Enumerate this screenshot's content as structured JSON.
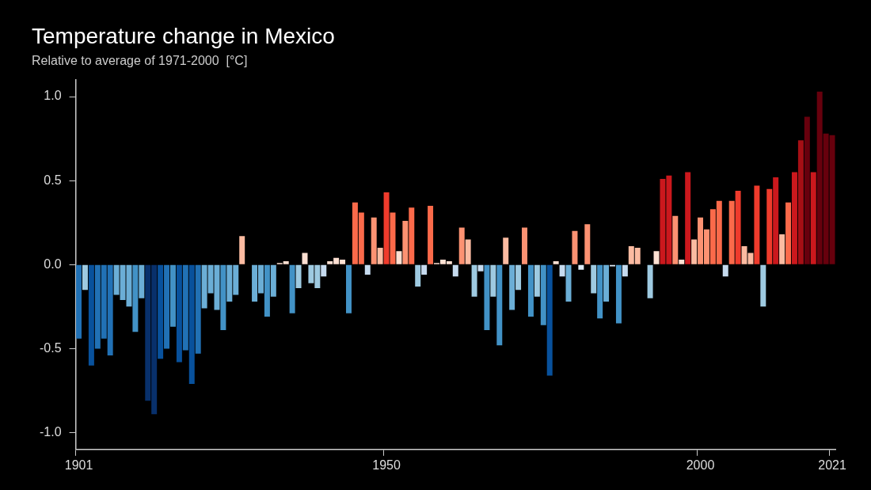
{
  "chart_data": {
    "type": "bar",
    "title": "Temperature change in Mexico",
    "subtitle": "Relative to average of 1971-2000  [°C]",
    "categories": [
      1901,
      null,
      null,
      null,
      null,
      null,
      null,
      null,
      null,
      null,
      null,
      null,
      null,
      null,
      null,
      null,
      null,
      null,
      null,
      null,
      null,
      null,
      null,
      null,
      null,
      null,
      null,
      null,
      null,
      null,
      null,
      null,
      null,
      null,
      null,
      null,
      null,
      null,
      null,
      null,
      null,
      null,
      null,
      null,
      null,
      null,
      null,
      null,
      null,
      1950,
      null,
      null,
      null,
      null,
      null,
      null,
      null,
      null,
      null,
      null,
      null,
      null,
      null,
      null,
      null,
      null,
      null,
      null,
      null,
      null,
      null,
      null,
      null,
      null,
      null,
      null,
      null,
      null,
      null,
      null,
      null,
      null,
      null,
      null,
      null,
      null,
      null,
      null,
      null,
      null,
      null,
      null,
      null,
      null,
      null,
      null,
      null,
      null,
      null,
      2000,
      null,
      null,
      null,
      null,
      null,
      null,
      null,
      null,
      null,
      null,
      null,
      null,
      null,
      null,
      null,
      null,
      null,
      null,
      null,
      null,
      2021
    ],
    "values": [
      -0.44,
      -0.15,
      -0.6,
      -0.5,
      -0.44,
      -0.54,
      -0.18,
      -0.21,
      -0.25,
      -0.4,
      -0.2,
      -0.81,
      -0.89,
      -0.56,
      -0.5,
      -0.37,
      -0.58,
      -0.51,
      -0.71,
      -0.53,
      -0.26,
      -0.17,
      -0.27,
      -0.39,
      -0.22,
      -0.18,
      0.17,
      0.0,
      -0.22,
      -0.17,
      -0.31,
      -0.19,
      0.01,
      0.02,
      -0.29,
      -0.14,
      0.07,
      -0.11,
      -0.14,
      -0.07,
      0.02,
      0.04,
      0.03,
      -0.29,
      0.37,
      0.31,
      -0.06,
      0.28,
      0.1,
      0.43,
      0.31,
      0.08,
      0.26,
      0.34,
      -0.13,
      -0.06,
      0.35,
      0.01,
      0.03,
      0.02,
      -0.07,
      0.22,
      0.15,
      -0.19,
      -0.04,
      -0.39,
      -0.19,
      -0.48,
      0.16,
      -0.27,
      -0.15,
      0.22,
      -0.31,
      -0.19,
      -0.36,
      -0.66,
      0.02,
      -0.07,
      -0.22,
      0.2,
      -0.03,
      0.24,
      -0.17,
      -0.32,
      -0.22,
      -0.01,
      -0.35,
      -0.07,
      0.11,
      0.1,
      0.0,
      -0.2,
      0.08,
      0.51,
      0.53,
      0.29,
      0.03,
      0.55,
      0.15,
      0.28,
      0.21,
      0.33,
      0.38,
      -0.07,
      0.38,
      0.44,
      0.11,
      0.07,
      0.47,
      -0.25,
      0.45,
      0.52,
      0.18,
      0.37,
      0.55,
      0.74,
      0.88,
      0.55,
      1.03,
      0.78,
      0.77
    ],
    "colors": [
      "#2171b5",
      "#9ecae1",
      "#08519c",
      "#2171b5",
      "#2171b5",
      "#2171b5",
      "#6baed6",
      "#6baed6",
      "#6baed6",
      "#4292c6",
      "#6baed6",
      "#08306b",
      "#08306b",
      "#08519c",
      "#2171b5",
      "#4292c6",
      "#08519c",
      "#2171b5",
      "#08519c",
      "#2171b5",
      "#6baed6",
      "#6baed6",
      "#6baed6",
      "#4292c6",
      "#6baed6",
      "#6baed6",
      "#fcbba1",
      "#deebf7",
      "#6baed6",
      "#6baed6",
      "#4292c6",
      "#6baed6",
      "#fee0d2",
      "#fee0d2",
      "#4292c6",
      "#9ecae1",
      "#fee0d2",
      "#9ecae1",
      "#9ecae1",
      "#c6dbef",
      "#fee0d2",
      "#fee0d2",
      "#fee0d2",
      "#4292c6",
      "#fb6a4a",
      "#fb6a4a",
      "#c6dbef",
      "#fc9272",
      "#fcbba1",
      "#ef3b2c",
      "#fb6a4a",
      "#fee0d2",
      "#fc9272",
      "#fb6a4a",
      "#9ecae1",
      "#c6dbef",
      "#fb6a4a",
      "#fee0d2",
      "#fee0d2",
      "#fee0d2",
      "#c6dbef",
      "#fc9272",
      "#fcbba1",
      "#9ecae1",
      "#c6dbef",
      "#4292c6",
      "#9ecae1",
      "#4292c6",
      "#fcbba1",
      "#6baed6",
      "#9ecae1",
      "#fc9272",
      "#4292c6",
      "#9ecae1",
      "#4292c6",
      "#08519c",
      "#fee0d2",
      "#c6dbef",
      "#6baed6",
      "#fc9272",
      "#deebf7",
      "#fc9272",
      "#9ecae1",
      "#4292c6",
      "#6baed6",
      "#deebf7",
      "#4292c6",
      "#c6dbef",
      "#fcbba1",
      "#fcbba1",
      "#deebf7",
      "#9ecae1",
      "#fee0d2",
      "#cb181d",
      "#cb181d",
      "#fc9272",
      "#fee0d2",
      "#cb181d",
      "#fcbba1",
      "#fc9272",
      "#fc9272",
      "#fb6a4a",
      "#fb6a4a",
      "#c6dbef",
      "#fb6a4a",
      "#ef3b2c",
      "#fcbba1",
      "#fcbba1",
      "#ef3b2c",
      "#9ecae1",
      "#ef3b2c",
      "#cb181d",
      "#fcbba1",
      "#fb6a4a",
      "#cb181d",
      "#a50f15",
      "#67000d",
      "#cb181d",
      "#67000d",
      "#67000d",
      "#67000d"
    ],
    "ylim": [
      -1.1,
      1.1
    ],
    "yticks": [
      {
        "value": -1.0,
        "label": "-1.0"
      },
      -0.5,
      {
        "value": 0,
        "label": "0.0"
      },
      0.5,
      {
        "value": 1.0,
        "label": "1.0"
      }
    ],
    "grid": false
  }
}
